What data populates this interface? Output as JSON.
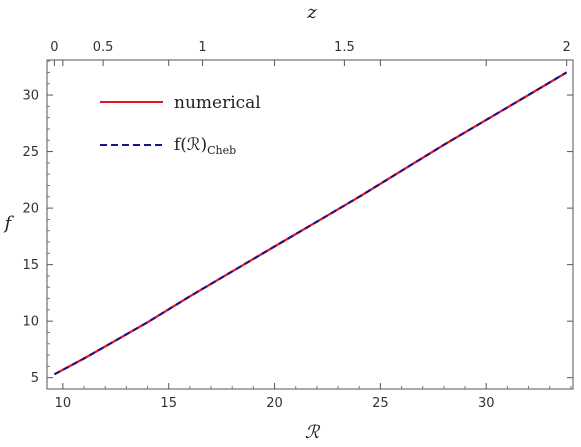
{
  "chart_data": {
    "type": "line",
    "xlabel": "ℛ",
    "ylabel": "f",
    "top_axis_label": "z",
    "xlim": [
      9.25,
      34.1
    ],
    "ylim": [
      4.0,
      33.1
    ],
    "x_ticks": [
      10,
      15,
      20,
      25,
      30
    ],
    "y_ticks": [
      5,
      10,
      15,
      20,
      25,
      30
    ],
    "top_ticks": [
      {
        "label": "0",
        "R": 9.6
      },
      {
        "label": "0.5",
        "R": 11.9
      },
      {
        "label": "1",
        "R": 16.6
      },
      {
        "label": "1.5",
        "R": 23.3
      },
      {
        "label": "2",
        "R": 33.8
      }
    ],
    "grid": false,
    "legend_position": "top-left",
    "series": [
      {
        "name": "numerical",
        "color": "#e8131c",
        "style": "solid",
        "x": [
          9.6,
          11,
          12.5,
          14,
          16,
          18,
          20,
          22,
          24,
          26,
          28,
          30,
          32,
          33.8
        ],
        "y": [
          5.3,
          6.7,
          8.3,
          9.9,
          12.2,
          14.4,
          16.6,
          18.8,
          21.0,
          23.3,
          25.6,
          27.8,
          30.0,
          32.0
        ]
      },
      {
        "name": "f(ℛ)",
        "name_subscript": "Cheb",
        "color": "#14148c",
        "style": "dashed",
        "x": [
          9.6,
          11,
          12.5,
          14,
          16,
          18,
          20,
          22,
          24,
          26,
          28,
          30,
          32,
          33.8
        ],
        "y": [
          5.3,
          6.7,
          8.3,
          9.9,
          12.2,
          14.4,
          16.6,
          18.8,
          21.0,
          23.3,
          25.6,
          27.8,
          30.0,
          32.0
        ]
      }
    ]
  }
}
